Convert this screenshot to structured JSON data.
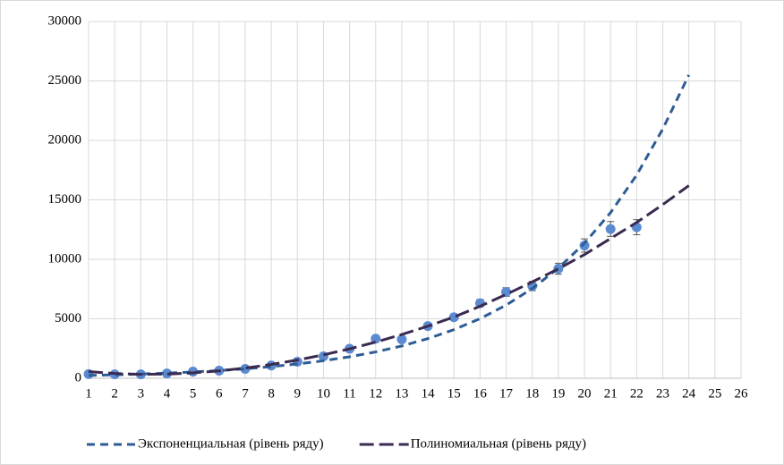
{
  "chart_data": {
    "type": "scatter",
    "xlim": [
      1,
      26
    ],
    "ylim": [
      0,
      30000
    ],
    "xticks": [
      1,
      2,
      3,
      4,
      5,
      6,
      7,
      8,
      9,
      10,
      11,
      12,
      13,
      14,
      15,
      16,
      17,
      18,
      19,
      20,
      21,
      22,
      23,
      24,
      25,
      26
    ],
    "yticks": [
      0,
      5000,
      10000,
      15000,
      20000,
      25000,
      30000
    ],
    "grid": true,
    "legend": "bottom",
    "series": [
      {
        "type": "scatter",
        "color": "#5b8ad0",
        "x": [
          1,
          2,
          3,
          4,
          5,
          6,
          7,
          8,
          9,
          10,
          11,
          12,
          13,
          14,
          15,
          16,
          17,
          18,
          19,
          20,
          21,
          22
        ],
        "values": [
          350,
          330,
          330,
          400,
          560,
          640,
          790,
          1070,
          1390,
          1840,
          2480,
          3330,
          3270,
          4390,
          5130,
          6310,
          7250,
          7760,
          9210,
          11160,
          12550,
          12700
        ],
        "errors": [
          18,
          17,
          17,
          20,
          28,
          32,
          40,
          54,
          70,
          92,
          124,
          167,
          164,
          220,
          257,
          316,
          363,
          388,
          461,
          558,
          628,
          635
        ]
      },
      {
        "type": "line",
        "name": "Экспоненциальная (рівень ряду)",
        "color": "#2e5c94",
        "dash": "9,6",
        "x": [
          1,
          2,
          3,
          4,
          5,
          6,
          7,
          8,
          9,
          10,
          11,
          12,
          13,
          14,
          15,
          16,
          17,
          18,
          19,
          20,
          21,
          22,
          23,
          24
        ],
        "values": [
          234,
          287,
          352,
          432,
          530,
          650,
          797,
          978,
          1199,
          1471,
          1805,
          2214,
          2716,
          3331,
          4087,
          5013,
          6150,
          7544,
          9254,
          11352,
          13926,
          17083,
          20956,
          25500
        ]
      },
      {
        "type": "line",
        "name": "Полиномиальная (рівень ряду)",
        "color": "#3a2a50",
        "dash": "16,6",
        "x": [
          1,
          2,
          3,
          4,
          5,
          6,
          7,
          8,
          9,
          10,
          11,
          12,
          13,
          14,
          15,
          16,
          17,
          18,
          19,
          20,
          21,
          22,
          23,
          24
        ],
        "values": [
          560,
          400,
          330,
          350,
          450,
          620,
          860,
          1160,
          1530,
          1970,
          2470,
          3040,
          3680,
          4380,
          5150,
          6050,
          7050,
          8100,
          9200,
          10400,
          11750,
          13100,
          14600,
          16200
        ]
      }
    ]
  }
}
